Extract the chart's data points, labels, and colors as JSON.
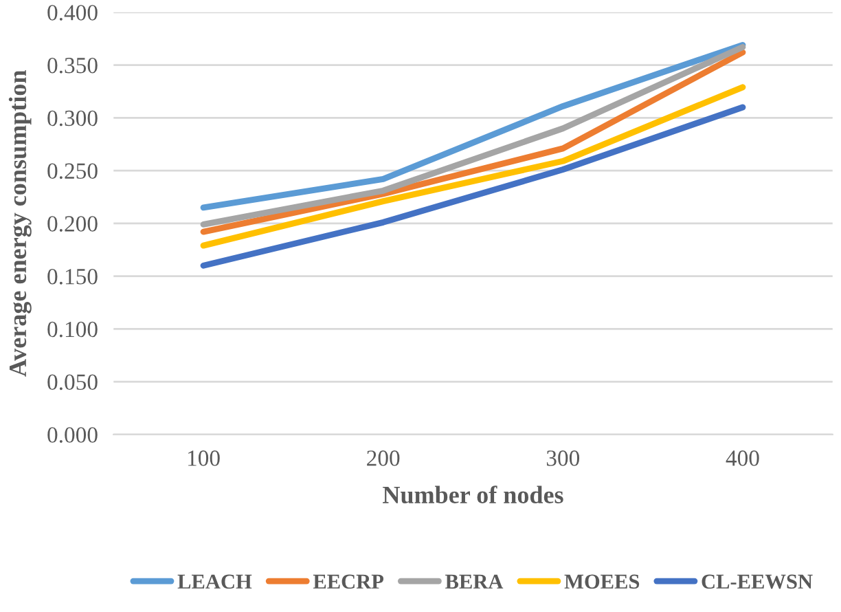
{
  "chart_data": {
    "type": "line",
    "xlabel": "Number of nodes",
    "ylabel": "Average energy consumption",
    "categories": [
      "100",
      "200",
      "300",
      "400"
    ],
    "series": [
      {
        "name": "LEACH",
        "color": "#5b9bd5",
        "values": [
          0.215,
          0.242,
          0.311,
          0.369
        ]
      },
      {
        "name": "EECRP",
        "color": "#ed7d31",
        "values": [
          0.192,
          0.228,
          0.271,
          0.362
        ]
      },
      {
        "name": "BERA",
        "color": "#a5a5a5",
        "values": [
          0.199,
          0.231,
          0.29,
          0.367
        ]
      },
      {
        "name": "MOEES",
        "color": "#ffc000",
        "values": [
          0.179,
          0.221,
          0.259,
          0.329
        ]
      },
      {
        "name": "CL-EEWSN",
        "color": "#4472c4",
        "values": [
          0.16,
          0.201,
          0.251,
          0.31
        ]
      }
    ],
    "ylim": [
      0,
      0.4
    ],
    "yticks": [
      {
        "value": 0,
        "label": "0.000"
      },
      {
        "value": 0.05,
        "label": "0.050"
      },
      {
        "value": 0.1,
        "label": "0.100"
      },
      {
        "value": 0.15,
        "label": "0.150"
      },
      {
        "value": 0.2,
        "label": "0.200"
      },
      {
        "value": 0.25,
        "label": "0.250"
      },
      {
        "value": 0.3,
        "label": "0.300"
      },
      {
        "value": 0.35,
        "label": "0.350"
      },
      {
        "value": 0.4,
        "label": "0.400"
      }
    ],
    "grid": "y",
    "legend": "bottom",
    "marker": "none",
    "line_style": "solid"
  }
}
